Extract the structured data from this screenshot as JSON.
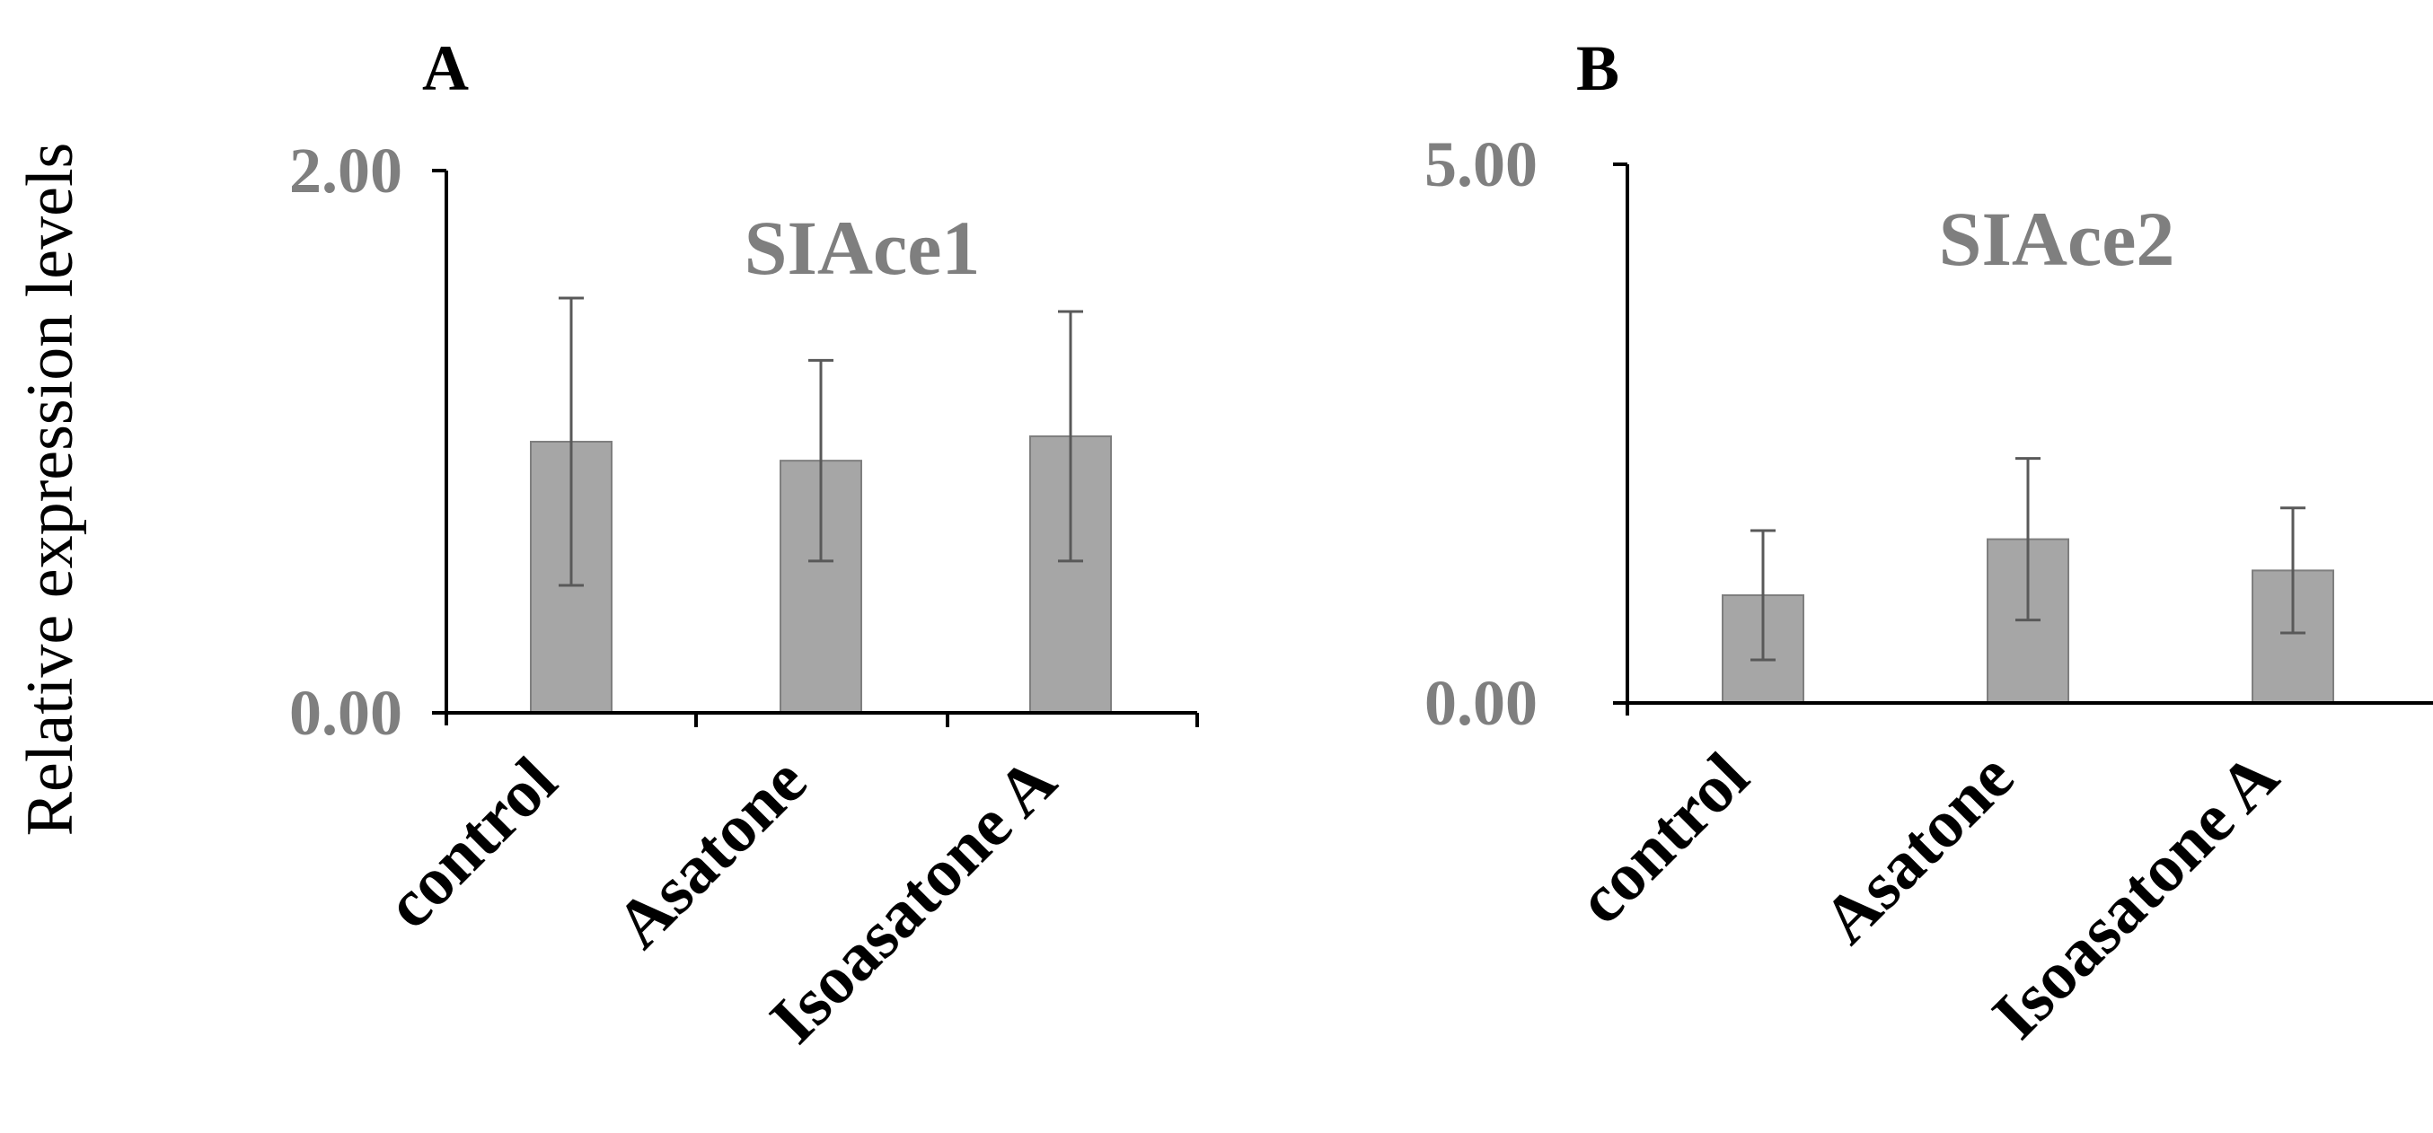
{
  "figure": {
    "ylabel": "Relative expression levels"
  },
  "colors": {
    "bar": "#a6a6a6",
    "bar_stroke": "#7f7f7f",
    "axis": "#000000",
    "error_bar": "#595959",
    "title_text": "#7f7f7f",
    "tick_text": "#7f7f7f",
    "category_text": "#000000"
  },
  "chart_data": [
    {
      "type": "bar",
      "panel": "A",
      "title": "SIAce1",
      "categories": [
        "control",
        "Asatone",
        "Isoasatone A"
      ],
      "values": [
        1.0,
        0.93,
        1.02
      ],
      "errors": [
        0.53,
        0.37,
        0.46
      ],
      "ylim": [
        0,
        2.0
      ],
      "yticks": [
        "0.00",
        "2.00"
      ],
      "xlabel": "",
      "ylabel": "Relative expression levels"
    },
    {
      "type": "bar",
      "panel": "B",
      "title": "SIAce2",
      "categories": [
        "control",
        "Asatone",
        "Isoasatone A"
      ],
      "values": [
        1.0,
        1.52,
        1.23
      ],
      "errors": [
        0.6,
        0.75,
        0.58
      ],
      "ylim": [
        0,
        5.0
      ],
      "yticks": [
        "0.00",
        "5.00"
      ],
      "xlabel": "",
      "ylabel": ""
    }
  ]
}
